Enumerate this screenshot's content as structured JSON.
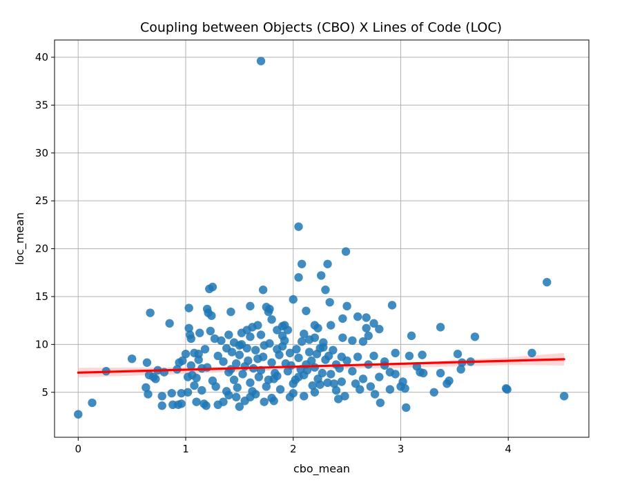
{
  "chart_data": {
    "type": "scatter",
    "title": "Coupling between Objects (CBO) X Lines of Code (LOC)",
    "xlabel": "cbo_mean",
    "ylabel": "loc_mean",
    "xlim": [
      -0.22,
      4.75
    ],
    "ylim": [
      0.3,
      41.8
    ],
    "xticks": [
      0,
      1,
      2,
      3,
      4
    ],
    "yticks": [
      5,
      10,
      15,
      20,
      25,
      30,
      35,
      40
    ],
    "grid": true,
    "colors": {
      "points": "#1f77b4",
      "regression": "#ff0000",
      "ci_band": "#ffb3b3"
    },
    "regression": {
      "x": [
        0.0,
        4.52
      ],
      "y": [
        7.05,
        8.45
      ]
    },
    "confidence_band": {
      "x": [
        0.0,
        1.0,
        2.0,
        3.0,
        4.0,
        4.52
      ],
      "upper": [
        7.55,
        7.6,
        7.75,
        8.05,
        8.65,
        9.1
      ],
      "lower": [
        6.55,
        6.92,
        7.4,
        7.55,
        7.85,
        7.8
      ]
    },
    "series": [
      {
        "values": [
          [
            0.0,
            2.7
          ],
          [
            0.13,
            3.9
          ],
          [
            0.26,
            7.2
          ],
          [
            0.5,
            8.5
          ],
          [
            0.63,
            5.5
          ],
          [
            0.64,
            8.1
          ],
          [
            0.65,
            4.8
          ],
          [
            0.66,
            6.8
          ],
          [
            0.67,
            13.3
          ],
          [
            0.7,
            6.6
          ],
          [
            0.72,
            6.4
          ],
          [
            0.74,
            7.3
          ],
          [
            0.78,
            3.6
          ],
          [
            0.8,
            7.1
          ],
          [
            0.78,
            4.6
          ],
          [
            0.85,
            12.2
          ],
          [
            0.87,
            4.9
          ],
          [
            0.88,
            3.7
          ],
          [
            0.92,
            7.4
          ],
          [
            0.93,
            3.7
          ],
          [
            0.94,
            8.1
          ],
          [
            0.96,
            4.9
          ],
          [
            0.96,
            3.8
          ],
          [
            0.97,
            8.3
          ],
          [
            1.0,
            9.0
          ],
          [
            1.02,
            6.6
          ],
          [
            1.03,
            13.8
          ],
          [
            1.03,
            11.7
          ],
          [
            1.04,
            11.0
          ],
          [
            1.05,
            10.6
          ],
          [
            1.02,
            5.0
          ],
          [
            1.06,
            6.8
          ],
          [
            1.08,
            5.7
          ],
          [
            1.1,
            4.0
          ],
          [
            1.12,
            9.0
          ],
          [
            1.13,
            11.2
          ],
          [
            1.15,
            7.5
          ],
          [
            1.17,
            3.8
          ],
          [
            1.19,
            3.6
          ],
          [
            1.2,
            13.7
          ],
          [
            1.21,
            13.3
          ],
          [
            1.22,
            15.8
          ],
          [
            1.24,
            13.0
          ],
          [
            1.25,
            16.0
          ],
          [
            1.23,
            11.4
          ],
          [
            1.27,
            10.6
          ],
          [
            1.3,
            3.7
          ],
          [
            1.35,
            4.0
          ],
          [
            1.38,
            5.1
          ],
          [
            1.4,
            11.0
          ],
          [
            1.42,
            13.4
          ],
          [
            1.45,
            10.2
          ],
          [
            1.47,
            4.5
          ],
          [
            1.5,
            3.5
          ],
          [
            1.52,
            11.2
          ],
          [
            1.55,
            4.1
          ],
          [
            1.57,
            11.5
          ],
          [
            1.6,
            14.0
          ],
          [
            1.62,
            11.8
          ],
          [
            1.65,
            4.8
          ],
          [
            1.67,
            12.0
          ],
          [
            1.7,
            39.6
          ],
          [
            1.72,
            15.7
          ],
          [
            1.73,
            4.0
          ],
          [
            1.75,
            13.9
          ],
          [
            1.77,
            13.4
          ],
          [
            1.78,
            13.7
          ],
          [
            1.8,
            12.6
          ],
          [
            1.82,
            4.1
          ],
          [
            1.85,
            11.5
          ],
          [
            1.9,
            11.9
          ],
          [
            1.92,
            12.0
          ],
          [
            1.95,
            11.5
          ],
          [
            1.97,
            4.5
          ],
          [
            2.0,
            14.7
          ],
          [
            2.05,
            22.3
          ],
          [
            2.05,
            17.0
          ],
          [
            2.08,
            18.4
          ],
          [
            2.1,
            4.6
          ],
          [
            2.12,
            13.5
          ],
          [
            2.15,
            10.5
          ],
          [
            2.2,
            12.0
          ],
          [
            2.23,
            11.7
          ],
          [
            2.26,
            17.2
          ],
          [
            2.28,
            10.2
          ],
          [
            2.3,
            15.7
          ],
          [
            2.32,
            18.4
          ],
          [
            2.34,
            14.4
          ],
          [
            2.35,
            12.0
          ],
          [
            2.42,
            4.3
          ],
          [
            2.46,
            10.7
          ],
          [
            2.46,
            12.7
          ],
          [
            2.48,
            4.6
          ],
          [
            2.49,
            19.7
          ],
          [
            2.5,
            14.0
          ],
          [
            2.55,
            10.4
          ],
          [
            2.6,
            12.9
          ],
          [
            2.62,
            5.3
          ],
          [
            2.65,
            10.3
          ],
          [
            2.68,
            11.7
          ],
          [
            2.68,
            12.8
          ],
          [
            2.7,
            10.9
          ],
          [
            2.75,
            12.2
          ],
          [
            2.76,
            4.8
          ],
          [
            2.8,
            11.6
          ],
          [
            2.81,
            3.9
          ],
          [
            2.85,
            7.8
          ],
          [
            2.9,
            5.3
          ],
          [
            2.92,
            14.1
          ],
          [
            2.95,
            9.1
          ],
          [
            3.0,
            5.6
          ],
          [
            3.02,
            6.1
          ],
          [
            3.04,
            5.4
          ],
          [
            3.05,
            3.4
          ],
          [
            3.08,
            8.8
          ],
          [
            3.1,
            10.9
          ],
          [
            3.15,
            7.7
          ],
          [
            3.18,
            7.1
          ],
          [
            3.2,
            8.9
          ],
          [
            3.21,
            7.0
          ],
          [
            3.31,
            5.0
          ],
          [
            3.37,
            11.8
          ],
          [
            3.37,
            7.0
          ],
          [
            3.43,
            5.9
          ],
          [
            3.45,
            6.2
          ],
          [
            3.53,
            9.0
          ],
          [
            3.56,
            7.4
          ],
          [
            3.57,
            8.1
          ],
          [
            3.65,
            8.2
          ],
          [
            3.69,
            10.8
          ],
          [
            3.98,
            5.4
          ],
          [
            3.99,
            5.3
          ],
          [
            4.22,
            9.1
          ],
          [
            4.36,
            16.5
          ],
          [
            4.52,
            4.6
          ],
          [
            1.35,
            8.2
          ],
          [
            1.4,
            7.1
          ],
          [
            1.45,
            6.3
          ],
          [
            1.5,
            8.9
          ],
          [
            1.55,
            7.7
          ],
          [
            1.6,
            6.0
          ],
          [
            1.65,
            9.4
          ],
          [
            1.7,
            7.3
          ],
          [
            1.75,
            5.6
          ],
          [
            1.8,
            8.1
          ],
          [
            1.85,
            6.7
          ],
          [
            1.9,
            9.8
          ],
          [
            1.95,
            7.2
          ],
          [
            2.0,
            5.9
          ],
          [
            2.05,
            8.6
          ],
          [
            2.1,
            6.8
          ],
          [
            2.15,
            9.2
          ],
          [
            2.2,
            7.6
          ],
          [
            2.25,
            5.8
          ],
          [
            2.3,
            8.4
          ],
          [
            2.35,
            6.9
          ],
          [
            2.4,
            7.9
          ],
          [
            2.45,
            6.1
          ],
          [
            2.5,
            8.3
          ],
          [
            1.38,
            9.6
          ],
          [
            1.48,
            5.5
          ],
          [
            1.58,
            8.3
          ],
          [
            1.68,
            6.6
          ],
          [
            1.78,
            10.1
          ],
          [
            1.88,
            5.3
          ],
          [
            1.98,
            7.8
          ],
          [
            2.08,
            10.3
          ],
          [
            2.18,
            5.7
          ],
          [
            2.28,
            9.7
          ],
          [
            2.38,
            5.9
          ],
          [
            1.42,
            7.4
          ],
          [
            1.52,
            10.0
          ],
          [
            1.62,
            5.1
          ],
          [
            1.72,
            8.7
          ],
          [
            1.82,
            6.4
          ],
          [
            1.92,
            10.4
          ],
          [
            2.02,
            6.3
          ],
          [
            2.12,
            7.9
          ],
          [
            2.22,
            9.0
          ],
          [
            2.32,
            6.0
          ],
          [
            1.3,
            8.8
          ],
          [
            1.25,
            6.2
          ],
          [
            1.2,
            7.6
          ],
          [
            1.15,
            5.2
          ],
          [
            1.12,
            8.4
          ],
          [
            1.1,
            6.5
          ],
          [
            1.08,
            9.1
          ],
          [
            1.05,
            7.8
          ],
          [
            2.55,
            7.2
          ],
          [
            2.6,
            8.7
          ],
          [
            2.65,
            6.4
          ],
          [
            2.7,
            7.9
          ],
          [
            2.75,
            8.8
          ],
          [
            2.8,
            6.6
          ],
          [
            2.85,
            8.2
          ],
          [
            2.9,
            7.1
          ],
          [
            2.95,
            6.9
          ],
          [
            2.58,
            5.9
          ],
          [
            2.72,
            5.6
          ],
          [
            1.33,
            10.4
          ],
          [
            1.43,
            9.2
          ],
          [
            1.53,
            6.9
          ],
          [
            1.63,
            7.5
          ],
          [
            1.73,
            9.9
          ],
          [
            1.83,
            7.0
          ],
          [
            1.93,
            8.0
          ],
          [
            2.03,
            9.5
          ],
          [
            2.13,
            7.3
          ],
          [
            2.23,
            6.4
          ],
          [
            2.33,
            8.8
          ],
          [
            2.43,
            7.5
          ],
          [
            1.47,
            8.0
          ],
          [
            1.57,
            9.6
          ],
          [
            1.67,
            8.5
          ],
          [
            1.77,
            6.3
          ],
          [
            1.87,
            8.9
          ],
          [
            1.97,
            9.1
          ],
          [
            2.07,
            7.4
          ],
          [
            2.17,
            8.3
          ],
          [
            2.27,
            7.0
          ],
          [
            2.37,
            9.4
          ],
          [
            1.28,
            5.6
          ],
          [
            1.18,
            9.5
          ],
          [
            1.6,
            10.8
          ],
          [
            1.7,
            11.0
          ],
          [
            1.9,
            10.9
          ],
          [
            2.1,
            11.1
          ],
          [
            2.2,
            10.7
          ],
          [
            2.0,
            4.9
          ],
          [
            1.8,
            4.4
          ],
          [
            1.6,
            4.5
          ],
          [
            1.4,
            4.7
          ],
          [
            2.2,
            5.0
          ],
          [
            2.4,
            5.2
          ],
          [
            1.5,
            9.9
          ],
          [
            1.85,
            9.5
          ],
          [
            2.05,
            6.6
          ],
          [
            2.25,
            9.6
          ],
          [
            2.45,
            8.7
          ]
        ]
      }
    ]
  }
}
